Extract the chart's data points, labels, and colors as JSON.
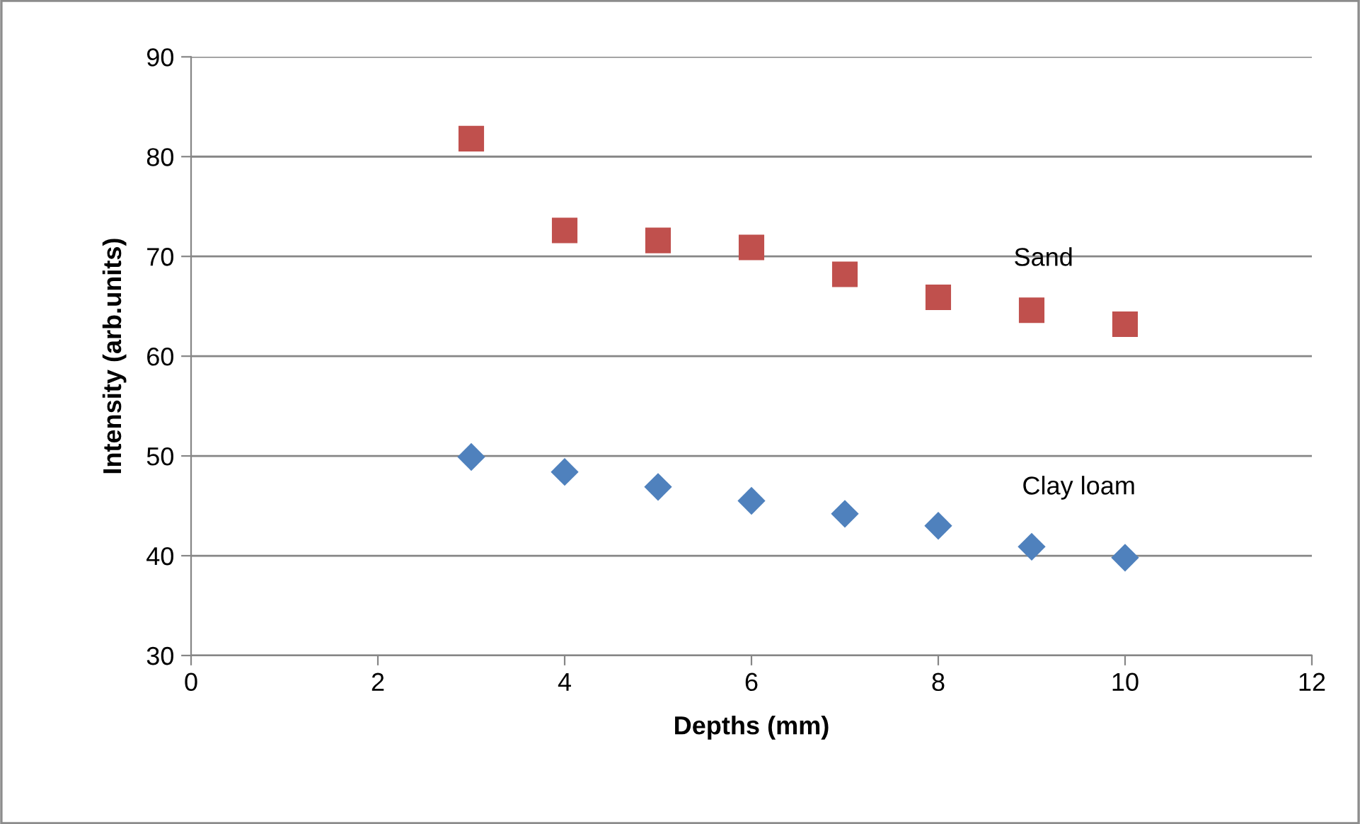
{
  "chart_data": {
    "type": "scatter",
    "xlabel": "Depths (mm)",
    "ylabel": "Intensity (arb.units)",
    "xlim": [
      0,
      12
    ],
    "xticks": [
      0,
      2,
      4,
      6,
      8,
      10,
      12
    ],
    "ylim": [
      30,
      90
    ],
    "yticks": [
      30,
      40,
      50,
      60,
      70,
      80,
      90
    ],
    "grid": "y",
    "series": [
      {
        "name": "Sand",
        "color": "#c0504d",
        "marker": "square",
        "x": [
          3,
          4,
          5,
          6,
          7,
          8,
          9,
          10
        ],
        "values": [
          81.8,
          72.6,
          71.6,
          70.9,
          68.2,
          65.9,
          64.6,
          63.2
        ]
      },
      {
        "name": "Clay loam",
        "color": "#4f81bd",
        "marker": "diamond",
        "x": [
          3,
          4,
          5,
          6,
          7,
          8,
          9,
          10
        ],
        "values": [
          49.9,
          48.4,
          46.9,
          45.5,
          44.2,
          43.0,
          40.9,
          39.8
        ]
      }
    ]
  }
}
